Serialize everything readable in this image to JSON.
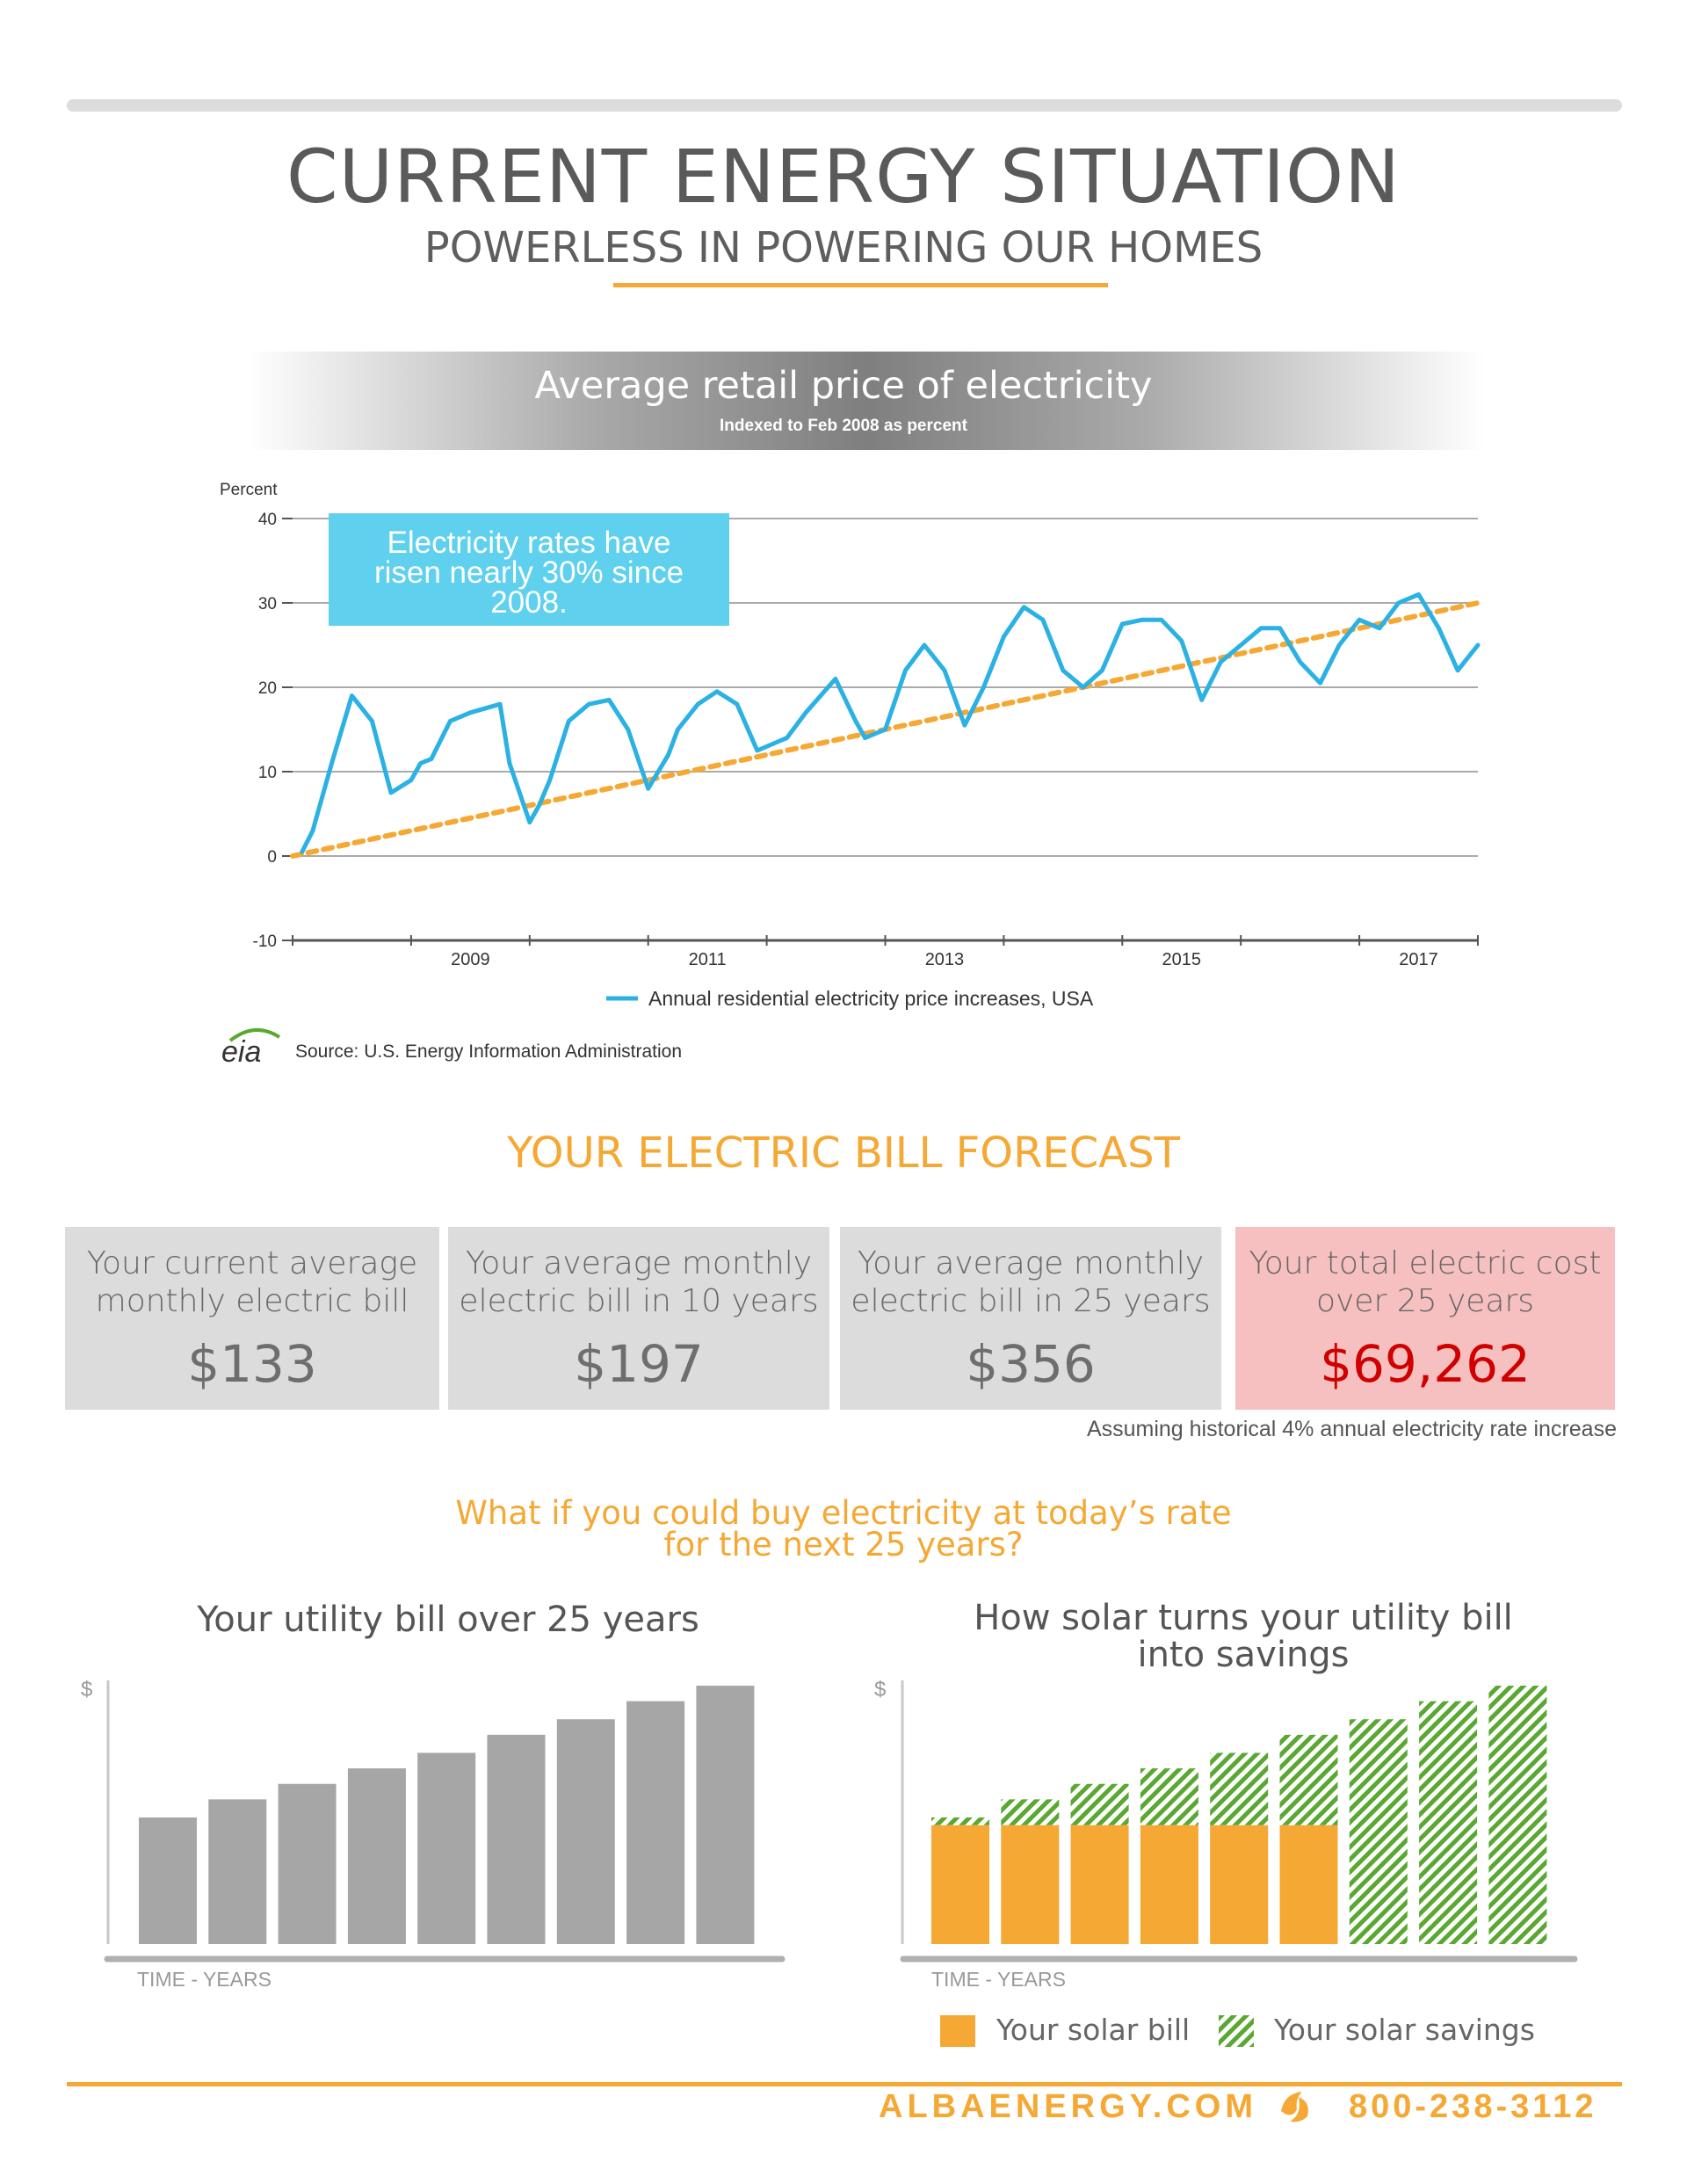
{
  "header": {
    "title": "CURRENT ENERGY SITUATION",
    "subtitle": "POWERLESS IN POWERING OUR HOMES"
  },
  "price_chart": {
    "title": "Average retail price of electricity",
    "subtitle": "Indexed to Feb 2008 as percent",
    "ylabel": "Percent",
    "callout": [
      "Electricity rates have",
      "risen nearly 30% since",
      "2008."
    ],
    "legend": "Annual residential electricity price increases, USA",
    "source": "Source: U.S. Energy Information Administration",
    "source_logo": "eia"
  },
  "forecast": {
    "title": "YOUR ELECTRIC BILL FORECAST",
    "cards": [
      {
        "label1": "Your current average",
        "label2": "monthly electric bill",
        "value": "$133"
      },
      {
        "label1": "Your average monthly",
        "label2": "electric bill in 10 years",
        "value": "$197"
      },
      {
        "label1": "Your average monthly",
        "label2": "electric bill in 25 years",
        "value": "$356"
      },
      {
        "label1": "Your total electric cost",
        "label2": "over 25 years",
        "value": "$69,262"
      }
    ],
    "note": "Assuming historical 4% annual electricity rate increase"
  },
  "whatif": {
    "line1": "What if you could buy electricity at today’s rate",
    "line2": "for the next 25 years?"
  },
  "utility_chart": {
    "title": "Your utility bill over 25 years",
    "ylabel": "$",
    "xlabel": "TIME - YEARS"
  },
  "solar_chart": {
    "title1": "How solar turns your utility bill",
    "title2": "into savings",
    "ylabel": "$",
    "xlabel": "TIME - YEARS",
    "legend_bill": "Your solar bill",
    "legend_savings": "Your solar savings"
  },
  "colors": {
    "line": "#2bb1e3",
    "trend": "#f5a833",
    "callout_bg": "#5fd0ee",
    "bar_gray": "#a6a6a6",
    "solar_bill": "#f5a833",
    "solar_savings": "#5aa832"
  },
  "footer": {
    "website": "ALBAENERGY.COM",
    "phone": "800-238-3112",
    "logo_icon": "alba-leaf-icon"
  },
  "chart_data": [
    {
      "type": "line",
      "title": "Average retail price of electricity",
      "subtitle": "Indexed to Feb 2008 as percent",
      "ylabel": "Percent",
      "xlabel": "",
      "ylim": [
        -10,
        40
      ],
      "xlim": [
        2008.0,
        2018.0
      ],
      "yticks": [
        40,
        30,
        20,
        10,
        0,
        -10
      ],
      "xticks": [
        "2009",
        "2011",
        "2013",
        "2015",
        "2017"
      ],
      "grid": true,
      "legend": "bottom-center",
      "series": [
        {
          "name": "Annual residential electricity price increases, USA",
          "x": [
            2008.08,
            2008.17,
            2008.33,
            2008.5,
            2008.67,
            2008.83,
            2009.0,
            2009.08,
            2009.17,
            2009.33,
            2009.5,
            2009.75,
            2009.83,
            2010.0,
            2010.08,
            2010.17,
            2010.33,
            2010.5,
            2010.67,
            2010.83,
            2011.0,
            2011.17,
            2011.25,
            2011.42,
            2011.58,
            2011.75,
            2011.92,
            2012.17,
            2012.33,
            2012.58,
            2012.75,
            2012.83,
            2013.0,
            2013.17,
            2013.33,
            2013.5,
            2013.67,
            2013.83,
            2014.0,
            2014.17,
            2014.33,
            2014.5,
            2014.67,
            2014.83,
            2015.0,
            2015.17,
            2015.33,
            2015.5,
            2015.67,
            2015.83,
            2016.0,
            2016.17,
            2016.33,
            2016.5,
            2016.67,
            2016.83,
            2017.0,
            2017.17,
            2017.33,
            2017.5,
            2017.67,
            2017.83,
            2018.0
          ],
          "y": [
            0.5,
            3,
            11,
            19,
            16,
            7.5,
            9,
            11,
            11.5,
            16,
            17,
            18,
            11,
            4,
            6,
            9,
            16,
            18,
            18.5,
            15,
            8,
            12,
            15,
            18,
            19.5,
            18,
            12.5,
            14,
            17,
            21,
            16,
            14,
            15,
            22,
            25,
            22,
            15.5,
            20,
            26,
            29.5,
            28,
            22,
            20,
            22,
            27.5,
            28,
            28,
            25.5,
            18.5,
            23,
            25,
            27,
            27,
            23,
            20.5,
            25,
            28,
            27,
            30,
            31,
            27,
            22,
            25
          ]
        },
        {
          "name": "Trend",
          "x": [
            2008.0,
            2018.0
          ],
          "y": [
            0,
            30
          ]
        }
      ]
    },
    {
      "type": "bar",
      "title": "Your utility bill over 25 years",
      "xlabel": "TIME - YEARS",
      "ylabel": "$",
      "ylim": [
        0,
        100
      ],
      "categories": [
        "1",
        "2",
        "3",
        "4",
        "5",
        "6",
        "7",
        "8",
        "9"
      ],
      "values": [
        49,
        56,
        62,
        68,
        74,
        81,
        87,
        94,
        100
      ]
    },
    {
      "type": "bar",
      "title": "How solar turns your utility bill into savings",
      "xlabel": "TIME - YEARS",
      "ylabel": "$",
      "ylim": [
        0,
        100
      ],
      "stacked": true,
      "categories": [
        "1",
        "2",
        "3",
        "4",
        "5",
        "6",
        "7",
        "8",
        "9"
      ],
      "series": [
        {
          "name": "Your solar bill",
          "values": [
            46,
            46,
            46,
            46,
            46,
            46,
            0,
            0,
            0
          ]
        },
        {
          "name": "Your solar savings",
          "values": [
            3,
            10,
            16,
            22,
            28,
            35,
            87,
            94,
            100
          ]
        }
      ]
    }
  ]
}
